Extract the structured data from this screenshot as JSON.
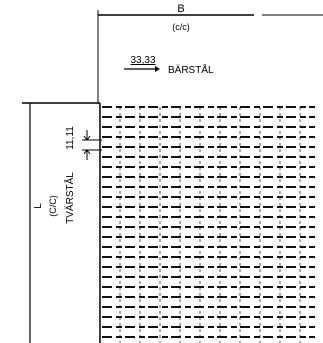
{
  "dimensions": {
    "width": {
      "symbol": "B",
      "qualifier": "(c/c)"
    },
    "length": {
      "symbol": "L",
      "qualifier": "(C/C)"
    }
  },
  "bearing_steel": {
    "spacing": "33,33",
    "label": "BÄRSTÅL"
  },
  "cross_steel": {
    "spacing": "11,11",
    "label": "TVÄRSTÅL"
  }
}
